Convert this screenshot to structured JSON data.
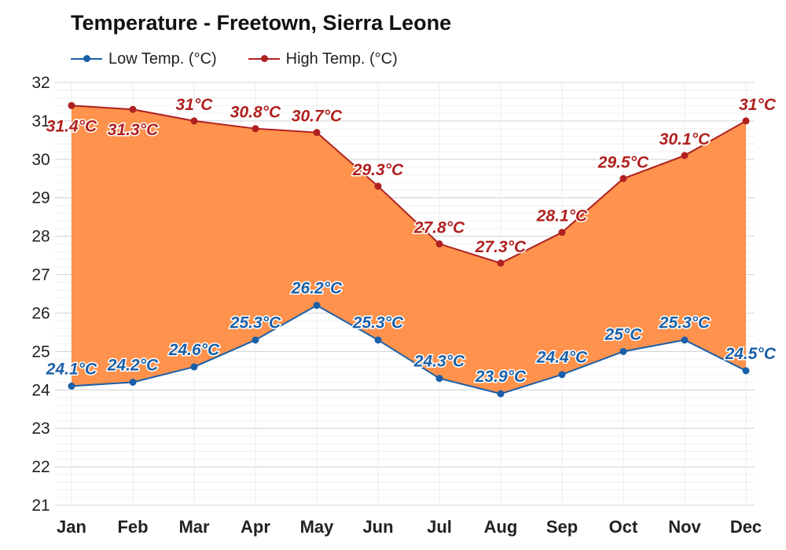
{
  "chart_data": {
    "type": "area",
    "title": "Temperature - Freetown, Sierra Leone",
    "xlabel": "",
    "ylabel": "",
    "categories": [
      "Jan",
      "Feb",
      "Mar",
      "Apr",
      "May",
      "Jun",
      "Jul",
      "Aug",
      "Sep",
      "Oct",
      "Nov",
      "Dec"
    ],
    "ylim": [
      21,
      32
    ],
    "yticks": [
      21,
      22,
      23,
      24,
      25,
      26,
      27,
      28,
      29,
      30,
      31,
      32
    ],
    "grid": true,
    "legend_position": "top-left",
    "series": [
      {
        "name": "Low Temp. (°C)",
        "color": "#1a5fa8",
        "values": [
          24.1,
          24.2,
          24.6,
          25.3,
          26.2,
          25.3,
          24.3,
          23.9,
          24.4,
          25.0,
          25.3,
          24.5
        ],
        "labels": [
          "24.1°C",
          "24.2°C",
          "24.6°C",
          "25.3°C",
          "26.2°C",
          "25.3°C",
          "24.3°C",
          "23.9°C",
          "24.4°C",
          "25°C",
          "25.3°C",
          "24.5°C"
        ]
      },
      {
        "name": "High Temp. (°C)",
        "color": "#b02020",
        "values": [
          31.4,
          31.3,
          31.0,
          30.8,
          30.7,
          29.3,
          27.8,
          27.3,
          28.1,
          29.5,
          30.1,
          31.0
        ],
        "labels": [
          "31.4°C",
          "31.3°C",
          "31°C",
          "30.8°C",
          "30.7°C",
          "29.3°C",
          "27.8°C",
          "27.3°C",
          "28.1°C",
          "29.5°C",
          "30.1°C",
          "31°C"
        ]
      }
    ],
    "fill_color": "#ff8c42"
  }
}
